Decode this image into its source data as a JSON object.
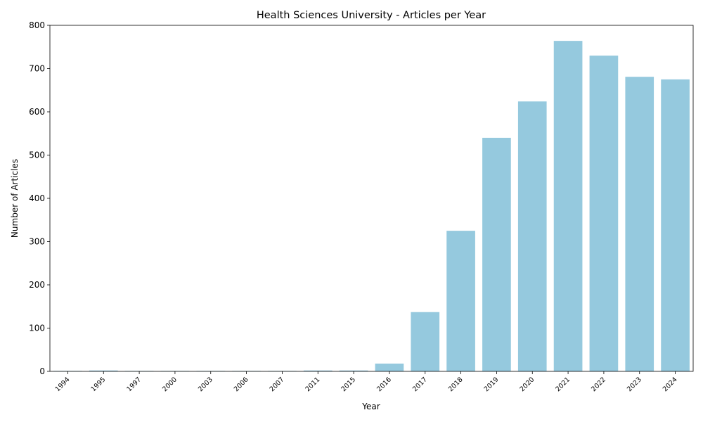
{
  "chart_data": {
    "type": "bar",
    "title": "Health Sciences University - Articles per Year",
    "xlabel": "Year",
    "ylabel": "Number of Articles",
    "categories": [
      "1994",
      "1995",
      "1997",
      "2000",
      "2003",
      "2006",
      "2007",
      "2011",
      "2015",
      "2016",
      "2017",
      "2018",
      "2019",
      "2020",
      "2021",
      "2022",
      "2023",
      "2024"
    ],
    "values": [
      1,
      2,
      1,
      1,
      1,
      1,
      1,
      2,
      2,
      18,
      137,
      325,
      540,
      624,
      764,
      730,
      681,
      675
    ],
    "ylim": [
      0,
      800
    ],
    "yticks": [
      0,
      100,
      200,
      300,
      400,
      500,
      600,
      700,
      800
    ],
    "bar_color": "#95c9de",
    "grid": false,
    "legend": "none"
  }
}
